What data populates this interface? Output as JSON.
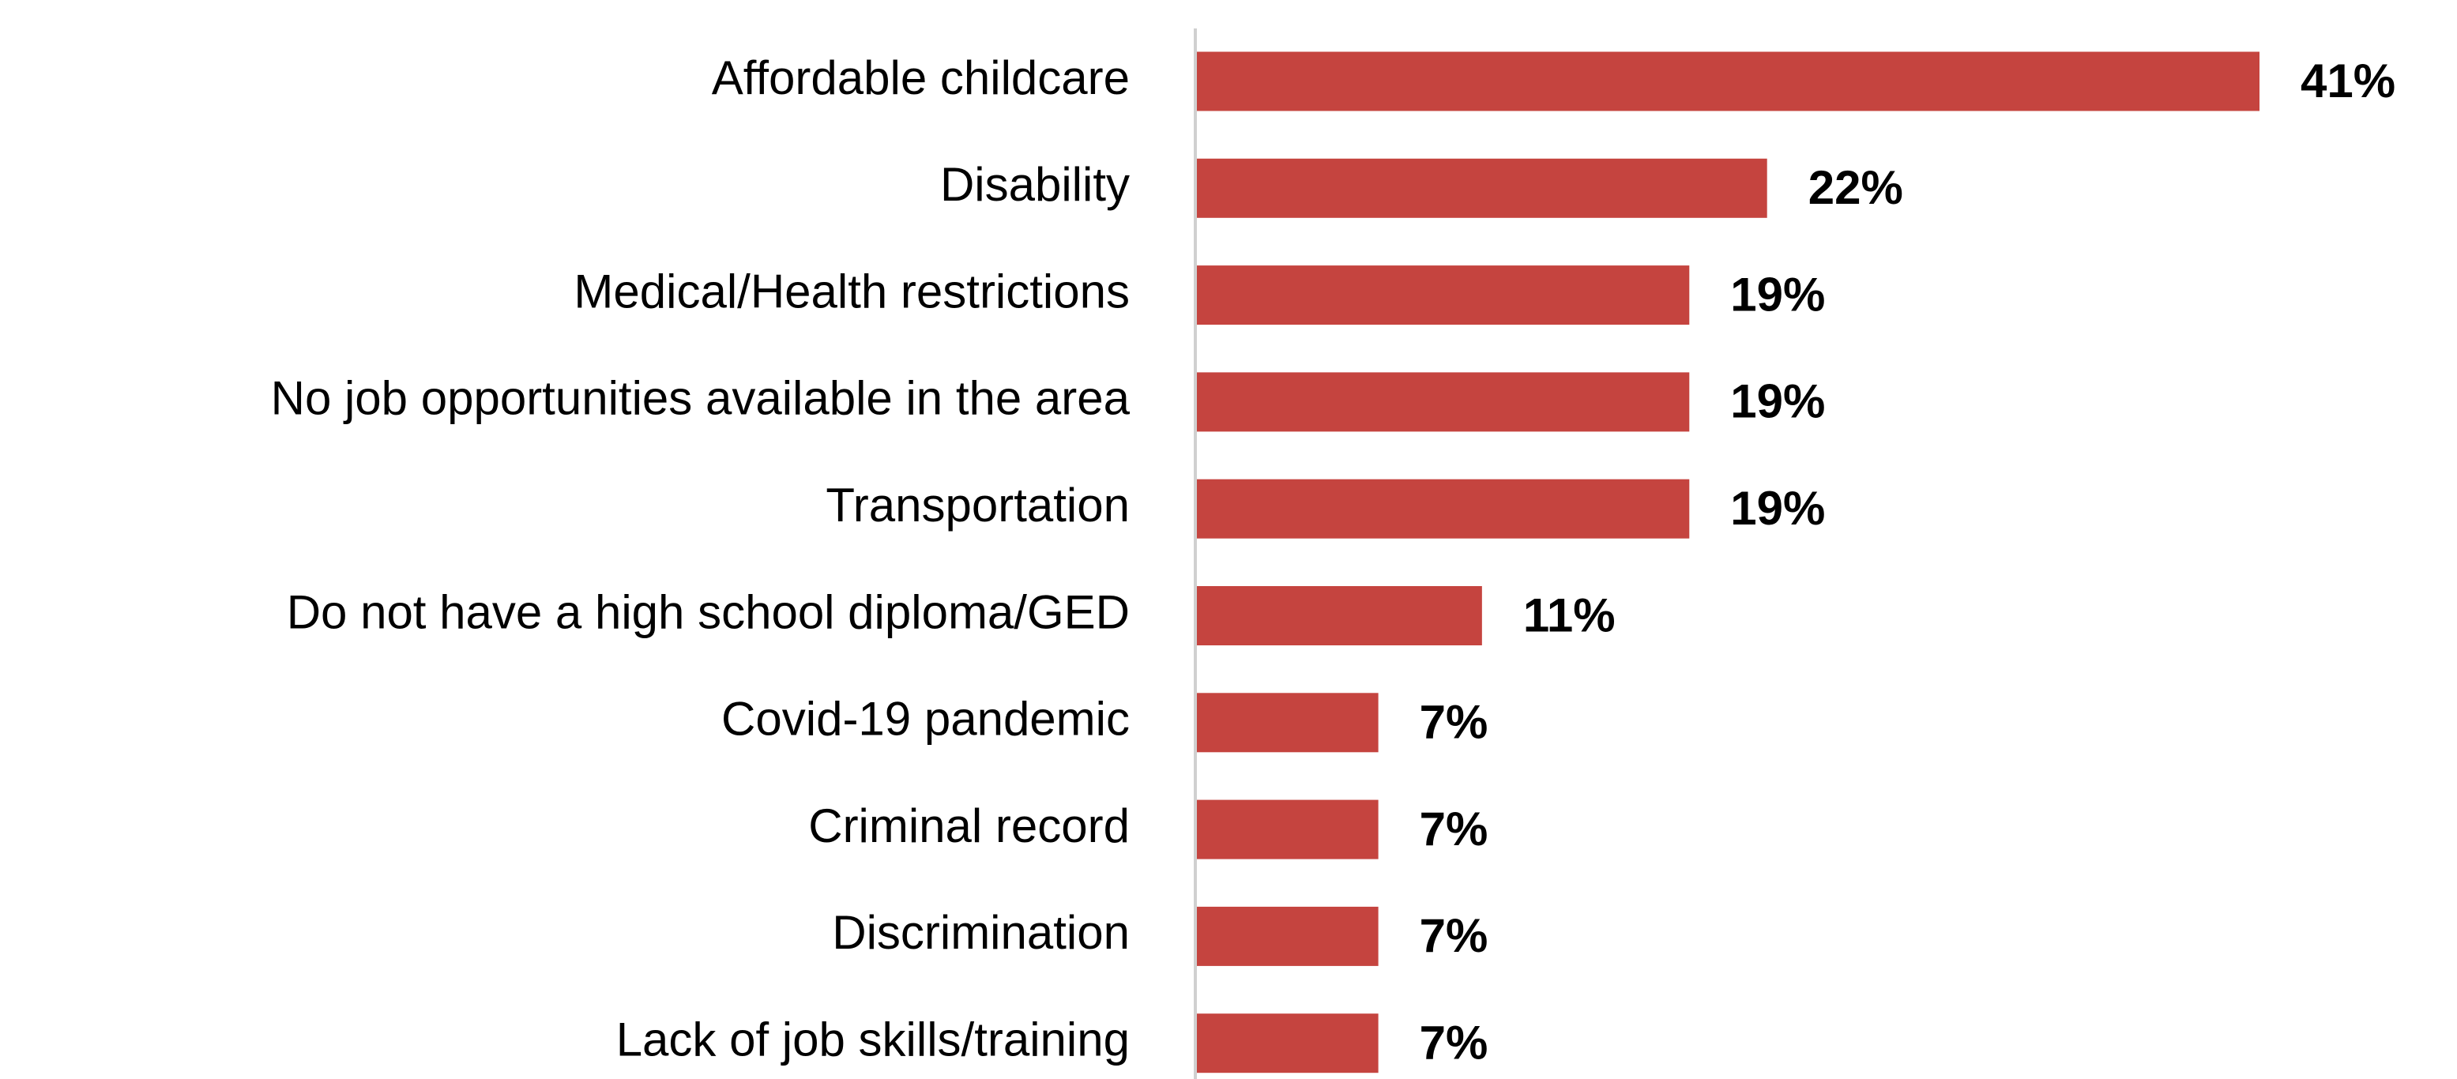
{
  "chart_data": {
    "type": "hbar",
    "categories": [
      "Affordable childcare",
      "Disability",
      "Medical/Health restrictions",
      "No job opportunities available in the area",
      "Transportation",
      "Do not have a high school diploma/GED",
      "Covid-19 pandemic",
      "Criminal record",
      "Discrimination",
      "Lack of job skills/training"
    ],
    "values": [
      41,
      22,
      19,
      19,
      19,
      11,
      7,
      7,
      7,
      7
    ],
    "value_labels": [
      "41%",
      "22%",
      "19%",
      "19%",
      "19%",
      "11%",
      "7%",
      "7%",
      "7%",
      "7%"
    ],
    "color": "#c5443f"
  }
}
